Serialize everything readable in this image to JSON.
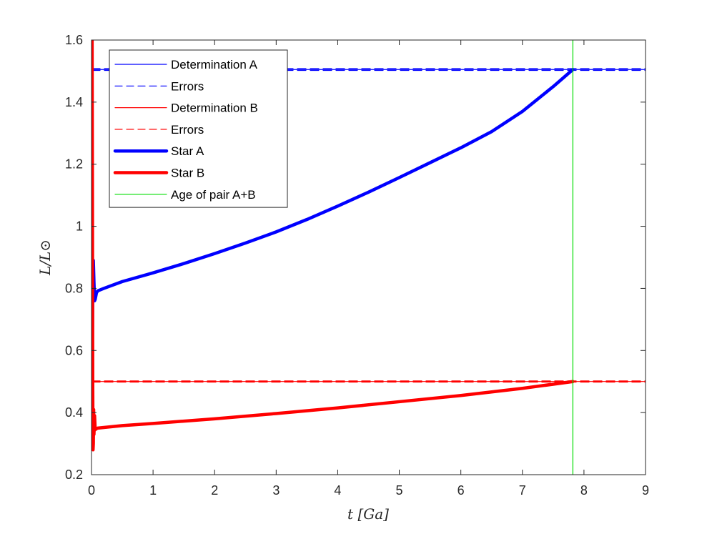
{
  "chart_data": {
    "type": "line",
    "xlabel": "t [Ga]",
    "ylabel": "L/L⊙",
    "xlim": [
      0,
      9
    ],
    "ylim": [
      0.2,
      1.6
    ],
    "x_ticks": [
      "0",
      "1",
      "2",
      "3",
      "4",
      "5",
      "6",
      "7",
      "8",
      "9"
    ],
    "y_ticks": [
      "0.2",
      "0.4",
      "0.6",
      "0.8",
      "1",
      "1.2",
      "1.4",
      "1.6"
    ],
    "grid": false,
    "legend_position": "top-left",
    "series": [
      {
        "name": "Determination A",
        "color": "#0000ff",
        "style": "solid",
        "width": "thin",
        "x": [
          0,
          9
        ],
        "y": [
          1.505,
          1.505
        ]
      },
      {
        "name": "Errors",
        "color": "#0000ff",
        "style": "dashed",
        "width": "thin",
        "x": [
          0,
          9
        ],
        "y": [
          1.508,
          1.508
        ],
        "x2": [
          0,
          9
        ],
        "y2": [
          1.502,
          1.502
        ]
      },
      {
        "name": "Determination B",
        "color": "#ff0000",
        "style": "solid",
        "width": "thin",
        "x": [
          0,
          9
        ],
        "y": [
          0.5,
          0.5
        ]
      },
      {
        "name": "Errors",
        "color": "#ff0000",
        "style": "dashed",
        "width": "thin",
        "x": [
          0,
          9
        ],
        "y": [
          0.502,
          0.502
        ],
        "x2": [
          0,
          9
        ],
        "y2": [
          0.498,
          0.498
        ]
      },
      {
        "name": "Star A",
        "color": "#0000ff",
        "style": "solid",
        "width": "thick",
        "x": [
          0.01,
          0.02,
          0.03,
          0.04,
          0.05,
          0.06,
          0.07,
          0.08,
          0.1,
          0.2,
          0.5,
          1,
          1.5,
          2,
          2.5,
          3,
          3.5,
          4,
          4.5,
          5,
          5.5,
          6,
          6.5,
          7,
          7.5,
          7.82
        ],
        "y": [
          0.5,
          0.8,
          0.89,
          0.82,
          0.76,
          0.765,
          0.775,
          0.785,
          0.792,
          0.8,
          0.822,
          0.85,
          0.88,
          0.912,
          0.946,
          0.982,
          1.022,
          1.065,
          1.11,
          1.157,
          1.205,
          1.253,
          1.305,
          1.37,
          1.45,
          1.505
        ]
      },
      {
        "name": "Star B",
        "color": "#ff0000",
        "style": "solid",
        "width": "thick",
        "x": [
          0,
          0.01,
          0.015,
          0.02,
          0.025,
          0.03,
          0.035,
          0.04,
          0.05,
          0.06,
          0.08,
          0.1,
          0.3,
          0.5,
          1,
          2,
          3,
          4,
          5,
          6,
          7,
          7.82
        ],
        "y": [
          1.6,
          1.6,
          1.1,
          0.5,
          0.28,
          0.3,
          0.41,
          0.33,
          0.39,
          0.345,
          0.348,
          0.35,
          0.354,
          0.358,
          0.365,
          0.38,
          0.397,
          0.415,
          0.435,
          0.455,
          0.478,
          0.5
        ]
      },
      {
        "name": "Age of pair A+B",
        "color": "#00dd00",
        "style": "solid",
        "width": "thin",
        "x": [
          7.82,
          7.82
        ],
        "y": [
          0.2,
          1.6
        ]
      }
    ]
  }
}
